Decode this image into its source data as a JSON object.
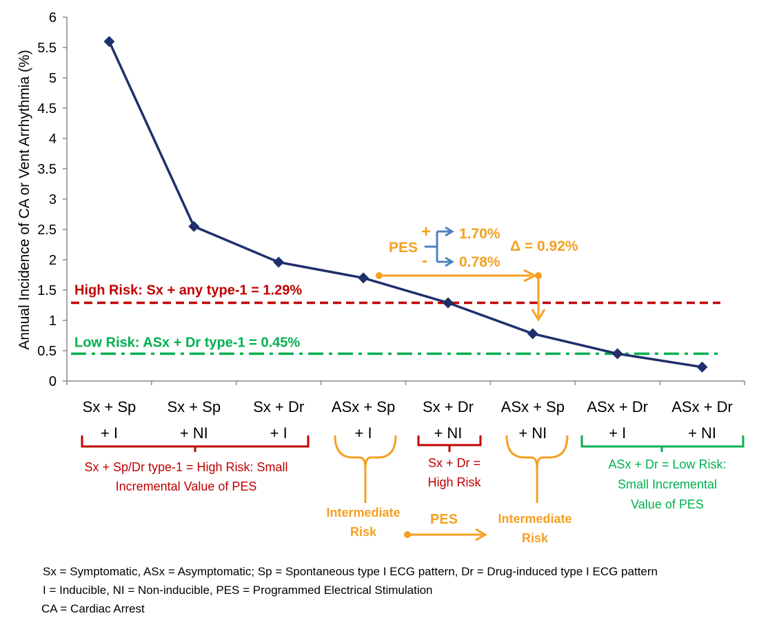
{
  "chart_data": {
    "type": "line",
    "ylabel": "Annual Incidence of CA or Vent Arrhythmia (%)",
    "xlabel": "",
    "ylim": [
      0,
      6
    ],
    "yticks": [
      "0",
      "0.5",
      "1",
      "1.5",
      "2",
      "2.5",
      "3",
      "3.5",
      "4",
      "4.5",
      "5",
      "5.5",
      "6"
    ],
    "categories": [
      {
        "line1": "Sx + Sp",
        "line2": "+ I"
      },
      {
        "line1": "Sx + Sp",
        "line2": "+ NI"
      },
      {
        "line1": "Sx + Dr",
        "line2": "+ I"
      },
      {
        "line1": "ASx + Sp",
        "line2": "+ I"
      },
      {
        "line1": "Sx + Dr",
        "line2": "+ NI"
      },
      {
        "line1": "ASx + Sp",
        "line2": "+ NI"
      },
      {
        "line1": "ASx + Dr",
        "line2": "+ I"
      },
      {
        "line1": "ASx + Dr",
        "line2": "+ NI"
      }
    ],
    "values": [
      5.6,
      2.55,
      1.96,
      1.7,
      1.29,
      0.78,
      0.45,
      0.23
    ],
    "series_color": "#1f2f6b",
    "reference_lines": [
      {
        "label": "High Risk: Sx + any type-1 = 1.29%",
        "value": 1.29,
        "color": "#c00000",
        "style": "dashed"
      },
      {
        "label": "Low Risk: ASx + Dr type-1 = 0.45%",
        "value": 0.45,
        "color": "#00b050",
        "style": "dash-dot"
      }
    ],
    "annotations": {
      "pes_label": "PES",
      "plus": "+",
      "minus": "-",
      "plus_value": "1.70%",
      "minus_value": "0.78%",
      "delta": "Δ = 0.92%",
      "groups": [
        {
          "lines": [
            "Sx + Sp/Dr type-1 = High Risk: Small",
            "Incremental Value of PES"
          ],
          "color": "#c00000"
        },
        {
          "lines": [
            "Intermediate",
            "Risk"
          ],
          "color": "#f5a020"
        },
        {
          "lines": [
            "Sx + Dr =",
            "High Risk"
          ],
          "color": "#c00000"
        },
        {
          "lines": [
            "Intermediate",
            "Risk"
          ],
          "color": "#f5a020"
        },
        {
          "lines": [
            "ASx + Dr = Low Risk:",
            "Small Incremental",
            "Value of PES"
          ],
          "color": "#00b050"
        }
      ],
      "bottom_pes": "PES"
    }
  },
  "footnotes": [
    "Sx = Symptomatic, ASx = Asymptomatic; Sp = Spontaneous type I ECG pattern, Dr = Drug-induced type I ECG pattern",
    "I = Inducible, NI = Non-inducible, PES = Programmed Electrical Stimulation",
    "CA = Cardiac Arrest"
  ],
  "colors": {
    "red": "#c00000",
    "green": "#00b050",
    "orange": "#f5a020",
    "blue_arrow": "#4f81bd",
    "series": "#1f2f6b"
  }
}
